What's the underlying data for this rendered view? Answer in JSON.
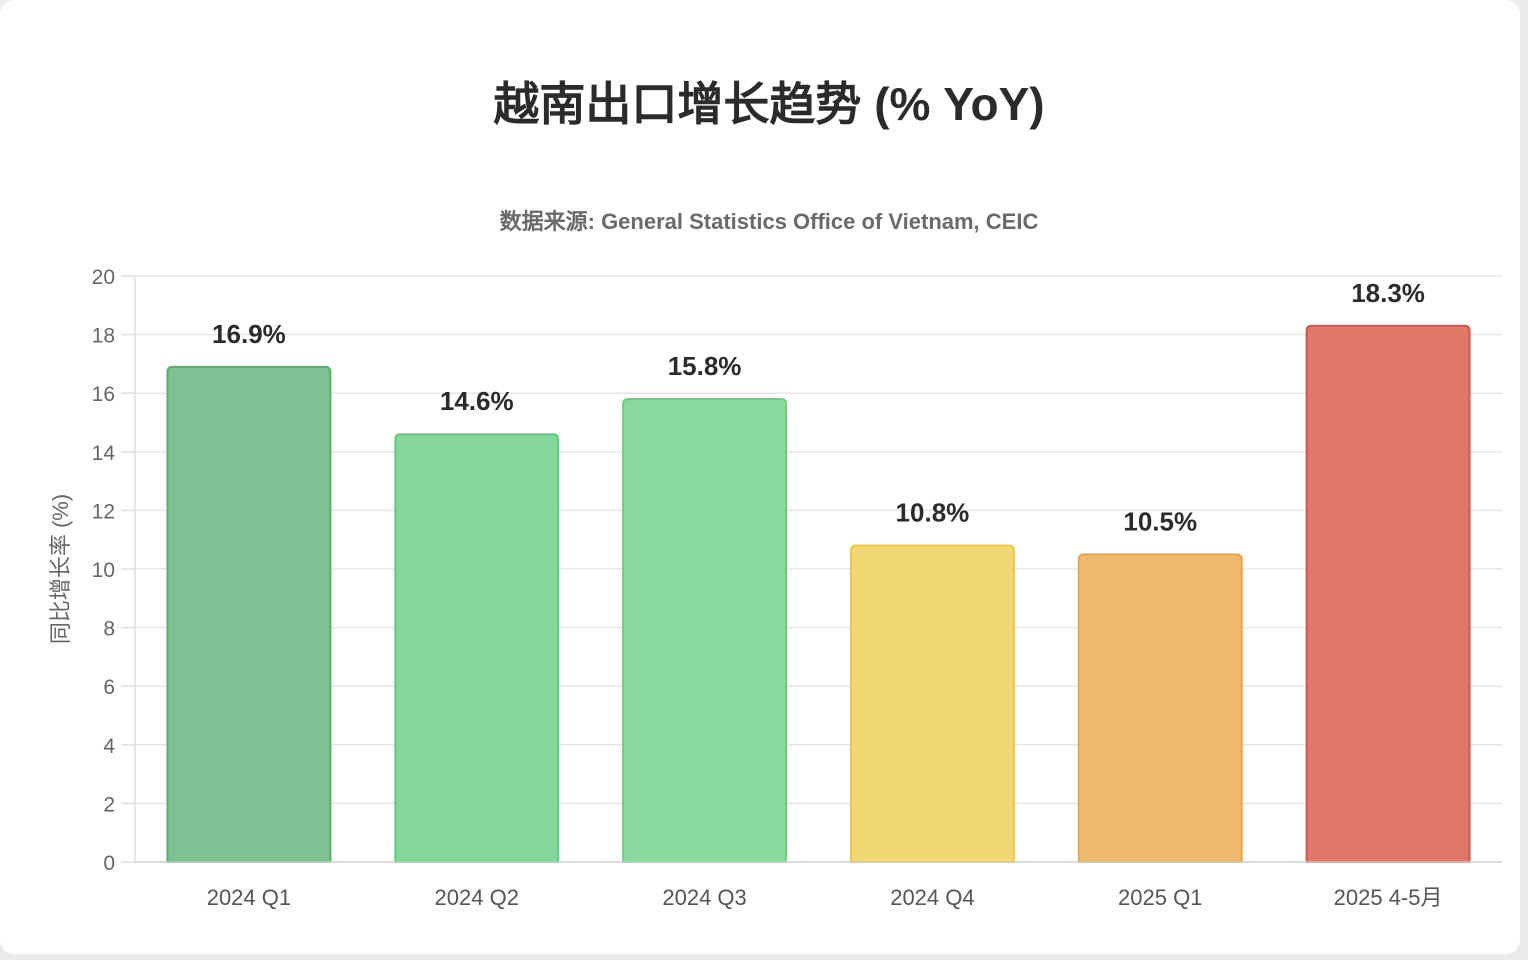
{
  "chart_data": {
    "type": "bar",
    "title": "越南出口增长趋势 (% YoY)",
    "subtitle": "数据来源: General Statistics Office of Vietnam, CEIC",
    "xlabel": "",
    "ylabel": "同比增长率 (%)",
    "ylim": [
      0,
      20
    ],
    "yticks": [
      0,
      2,
      4,
      6,
      8,
      10,
      12,
      14,
      16,
      18,
      20
    ],
    "grid": true,
    "legend": "none",
    "categories": [
      "2024 Q1",
      "2024 Q2",
      "2024 Q3",
      "2024 Q4",
      "2025 Q1",
      "2025 4-5月"
    ],
    "values": [
      16.9,
      14.6,
      15.8,
      10.8,
      10.5,
      18.3
    ],
    "value_labels": [
      "16.9%",
      "14.6%",
      "15.8%",
      "10.8%",
      "10.5%",
      "18.3%"
    ],
    "bar_colors": [
      "#7ec291",
      "#85d699",
      "#8bd99e",
      "#f1d874",
      "#efb96d",
      "#df786b"
    ],
    "bar_border_colors": [
      "#5aae70",
      "#66c981",
      "#6bcb85",
      "#ebc94d",
      "#e8a64a",
      "#d2574a"
    ]
  }
}
